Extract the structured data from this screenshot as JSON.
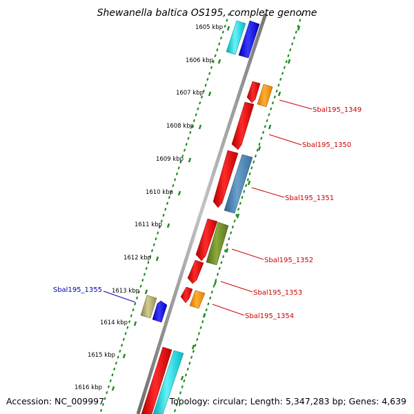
{
  "header": {
    "title": "Shewanella baltica OS195, complete genome"
  },
  "footer": {
    "accession": "Accession: NC_009997",
    "summary": "Topology: circular; Length: 5,347,283 bp; Genes: 4,639"
  },
  "ruler": {
    "ticks": [
      "1605 kbp",
      "1606 kbp",
      "1607 kbp",
      "1608 kbp",
      "1609 kbp",
      "1610 kbp",
      "1611 kbp",
      "1612 kbp",
      "1613 kbp",
      "1614 kbp",
      "1615 kbp",
      "1616 kbp"
    ]
  },
  "colors": {
    "forward_label": "#cc0000",
    "reverse_label": "#0000aa",
    "backbone": "#888888",
    "dots": "#228b22"
  },
  "gene_labels": {
    "g1349": "Sbal195_1349",
    "g1350": "Sbal195_1350",
    "g1351": "Sbal195_1351",
    "g1352": "Sbal195_1352",
    "g1353": "Sbal195_1353",
    "g1354": "Sbal195_1354",
    "g1355": "Sbal195_1355"
  },
  "features": {
    "cds_icon": "block-arrow-red",
    "other_icons": [
      "block-arrow-orange",
      "block-arrow-steelblue",
      "block-arrow-olive",
      "block-arrow-cyan",
      "block-arrow-blue",
      "block-arrow-khaki"
    ]
  }
}
